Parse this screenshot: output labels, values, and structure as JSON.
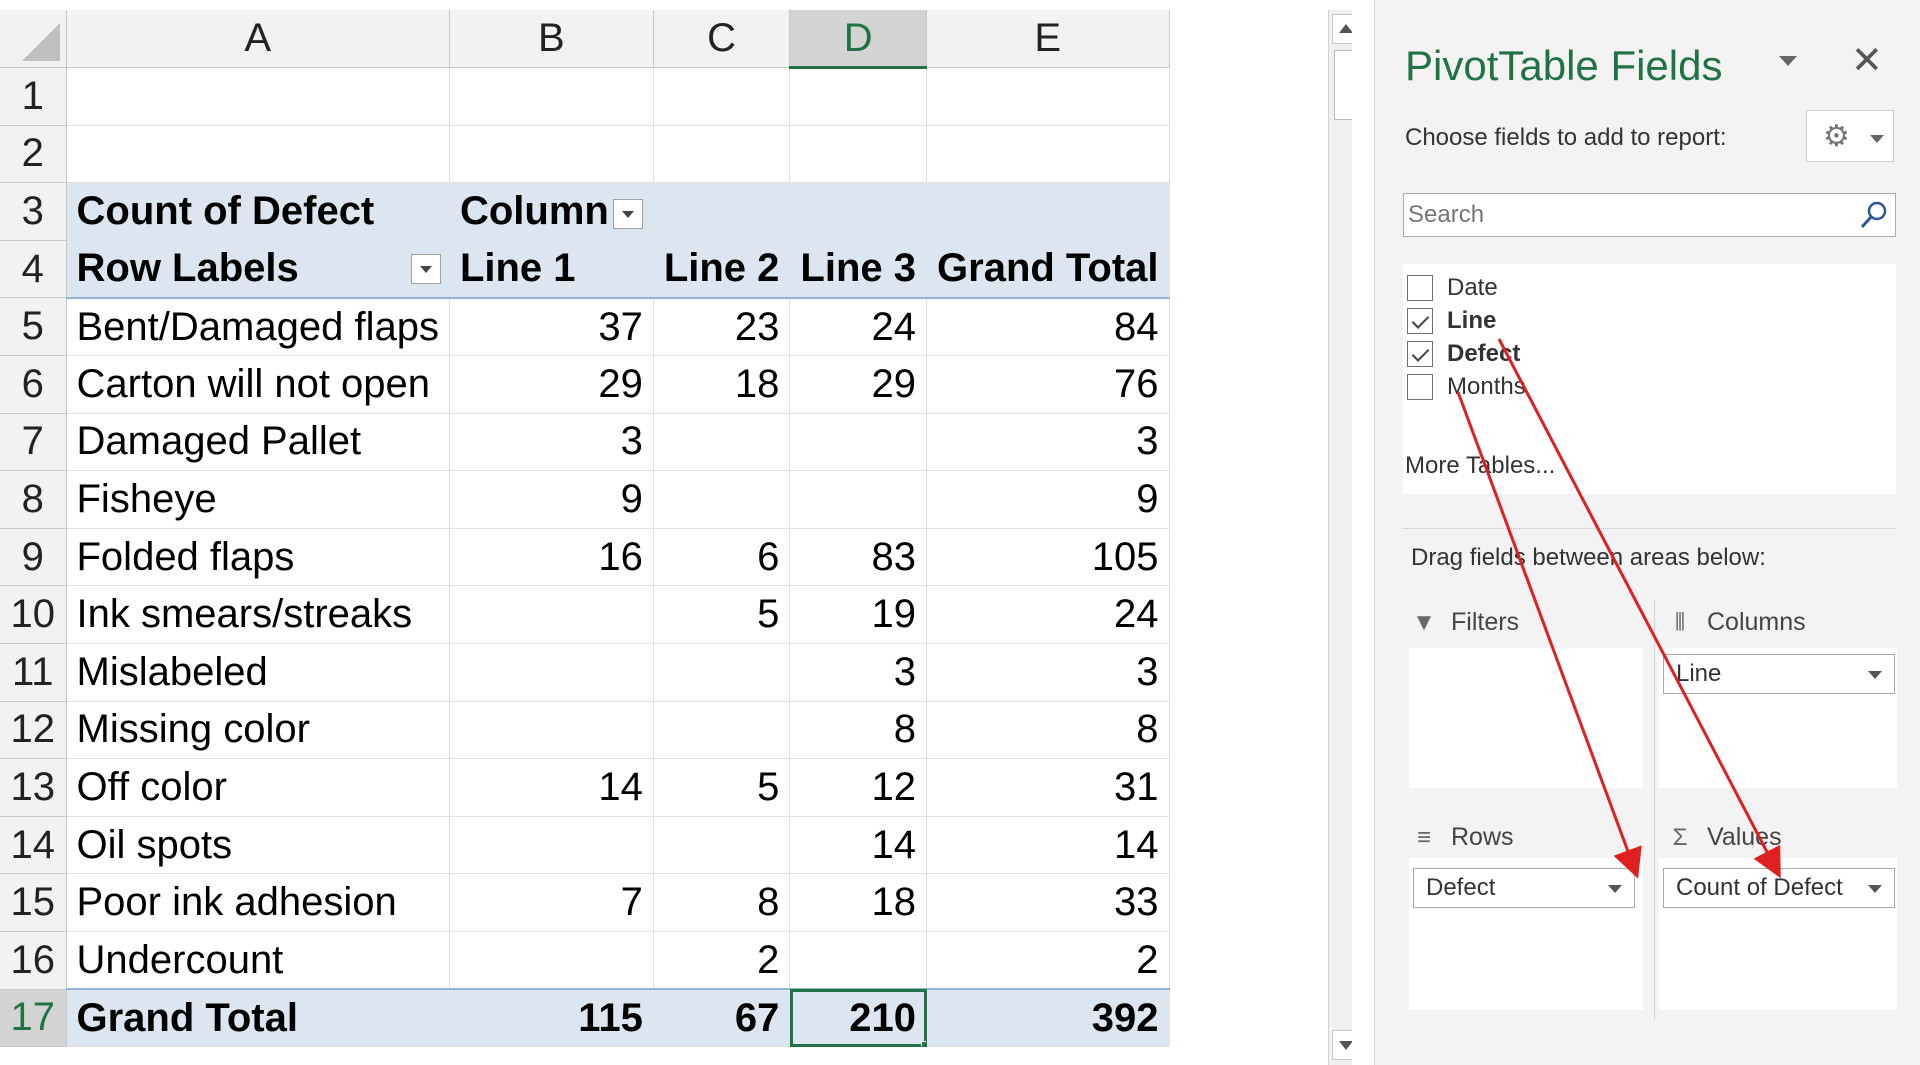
{
  "sheet": {
    "columns": [
      "A",
      "B",
      "C",
      "D",
      "E"
    ],
    "selected_column": "D",
    "selected_row": "17",
    "active_cell": "D17",
    "rows": [
      {
        "n": "1",
        "a": "",
        "b": "",
        "c": "",
        "d": "",
        "e": ""
      },
      {
        "n": "2",
        "a": "",
        "b": "",
        "c": "",
        "d": "",
        "e": ""
      },
      {
        "n": "3",
        "a": "Count of Defect",
        "b": "Column",
        "c": "",
        "d": "",
        "e": ""
      },
      {
        "n": "4",
        "a": "Row Labels",
        "b": "Line 1",
        "c": "Line 2",
        "d": "Line 3",
        "e": "Grand Total"
      },
      {
        "n": "5",
        "a": "Bent/Damaged flaps",
        "b": "37",
        "c": "23",
        "d": "24",
        "e": "84"
      },
      {
        "n": "6",
        "a": "Carton will not open",
        "b": "29",
        "c": "18",
        "d": "29",
        "e": "76"
      },
      {
        "n": "7",
        "a": "Damaged Pallet",
        "b": "3",
        "c": "",
        "d": "",
        "e": "3"
      },
      {
        "n": "8",
        "a": "Fisheye",
        "b": "9",
        "c": "",
        "d": "",
        "e": "9"
      },
      {
        "n": "9",
        "a": "Folded flaps",
        "b": "16",
        "c": "6",
        "d": "83",
        "e": "105"
      },
      {
        "n": "10",
        "a": "Ink smears/streaks",
        "b": "",
        "c": "5",
        "d": "19",
        "e": "24"
      },
      {
        "n": "11",
        "a": "Mislabeled",
        "b": "",
        "c": "",
        "d": "3",
        "e": "3"
      },
      {
        "n": "12",
        "a": "Missing color",
        "b": "",
        "c": "",
        "d": "8",
        "e": "8"
      },
      {
        "n": "13",
        "a": "Off color",
        "b": "14",
        "c": "5",
        "d": "12",
        "e": "31"
      },
      {
        "n": "14",
        "a": "Oil spots",
        "b": "",
        "c": "",
        "d": "14",
        "e": "14"
      },
      {
        "n": "15",
        "a": "Poor ink adhesion",
        "b": "7",
        "c": "8",
        "d": "18",
        "e": "33"
      },
      {
        "n": "16",
        "a": "Undercount",
        "b": "",
        "c": "2",
        "d": "",
        "e": "2"
      },
      {
        "n": "17",
        "a": "Grand Total",
        "b": "115",
        "c": "67",
        "d": "210",
        "e": "392"
      }
    ]
  },
  "pane": {
    "title": "PivotTable Fields",
    "close_glyph": "✕",
    "choose_label": "Choose fields to add to report:",
    "search_placeholder": "Search",
    "fields": [
      {
        "name": "Date",
        "checked": false
      },
      {
        "name": "Line",
        "checked": true
      },
      {
        "name": "Defect",
        "checked": true
      },
      {
        "name": "Months",
        "checked": false
      }
    ],
    "more_tables": "More Tables...",
    "drag_label": "Drag fields between areas below:",
    "areas": {
      "filters": {
        "label": "Filters",
        "items": []
      },
      "columns": {
        "label": "Columns",
        "items": [
          "Line"
        ]
      },
      "rows": {
        "label": "Rows",
        "items": [
          "Defect"
        ]
      },
      "values": {
        "label": "Values",
        "items": [
          "Count of Defect"
        ]
      }
    },
    "icons": {
      "filters": "filter-icon",
      "columns": "columns-icon",
      "rows": "rows-icon",
      "values": "sigma-icon",
      "gear": "gear-icon",
      "search": "search-icon"
    },
    "accent_color": "#217346",
    "arrow_color": "#e02020"
  }
}
